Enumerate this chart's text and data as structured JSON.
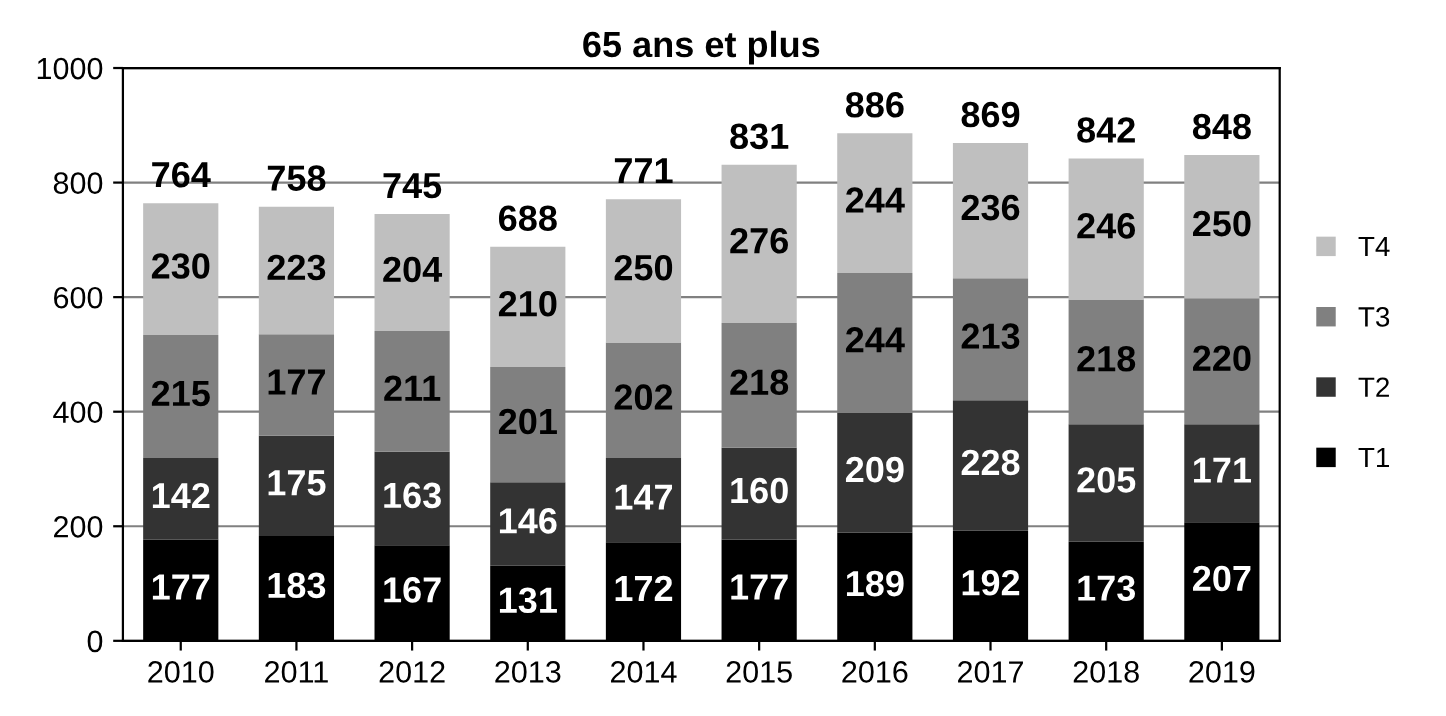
{
  "chart_data": {
    "type": "bar",
    "title": "65 ans et plus",
    "stacked": true,
    "categories": [
      "2010",
      "2011",
      "2012",
      "2013",
      "2014",
      "2015",
      "2016",
      "2017",
      "2018",
      "2019"
    ],
    "series": [
      {
        "name": "T1",
        "color": "#000000",
        "values": [
          177,
          183,
          167,
          131,
          172,
          177,
          189,
          192,
          173,
          207
        ]
      },
      {
        "name": "T2",
        "color": "#333333",
        "values": [
          142,
          175,
          163,
          146,
          147,
          160,
          209,
          228,
          205,
          171
        ]
      },
      {
        "name": "T3",
        "color": "#808080",
        "values": [
          215,
          177,
          211,
          201,
          202,
          218,
          244,
          213,
          218,
          220
        ]
      },
      {
        "name": "T4",
        "color": "#bfbfbf",
        "values": [
          230,
          223,
          204,
          210,
          250,
          276,
          244,
          236,
          246,
          250
        ]
      }
    ],
    "totals": [
      "764",
      "758",
      "745",
      "688",
      "771",
      "831",
      "886",
      "869",
      "842",
      "848"
    ],
    "data_labels": true,
    "ylim": [
      0,
      1000
    ],
    "yticks": [
      0,
      200,
      400,
      600,
      800,
      1000
    ],
    "grid": "y",
    "legend": "right"
  }
}
